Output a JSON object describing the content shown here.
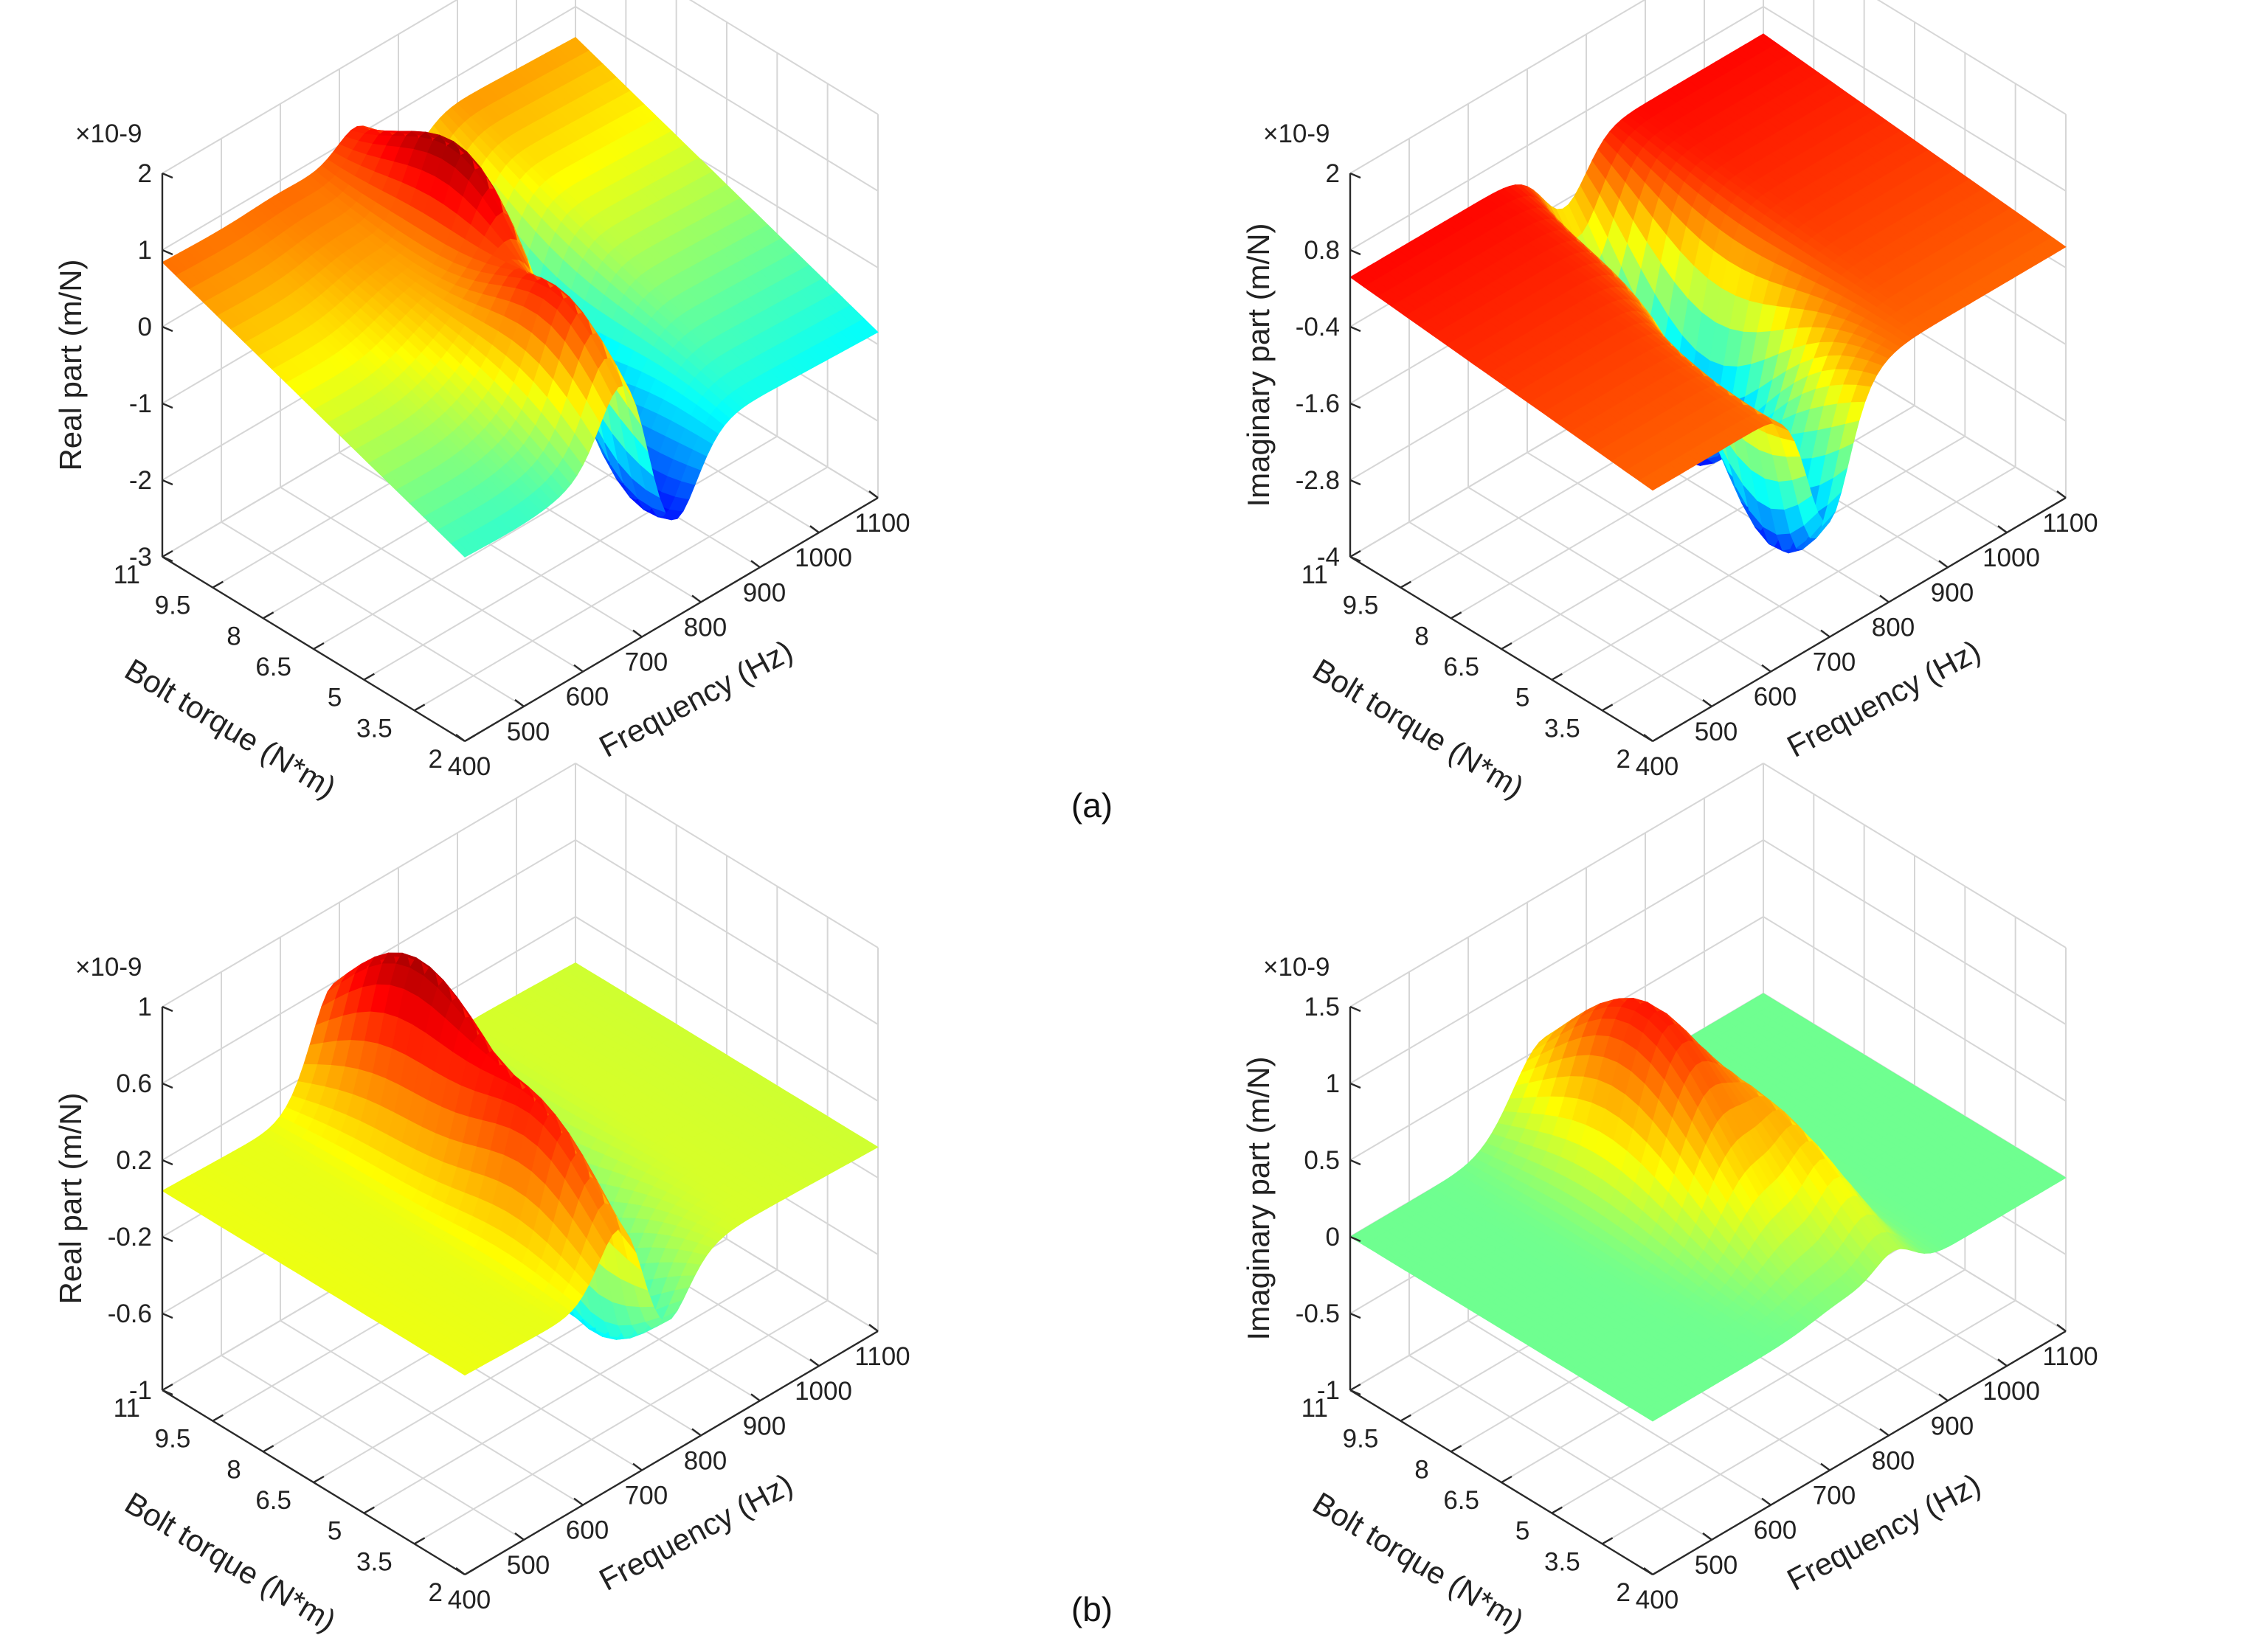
{
  "figure": {
    "panel_labels": [
      "(a)",
      "(b)"
    ]
  },
  "colors": {
    "axis": "#2a2a2a",
    "grid": "#d6d6d6",
    "colormap": "jet"
  },
  "chart_data": [
    {
      "type": "surface",
      "panel": "(a)",
      "title": "",
      "xlabel": "Frequency (Hz)",
      "ylabel": "Bolt torque (N*m)",
      "zlabel": "Real part (m/N)",
      "z_exponent": "×10-9",
      "xlim": [
        400,
        1100
      ],
      "ylim": [
        2,
        11
      ],
      "zlim": [
        -3,
        2
      ],
      "xticks": [
        "400",
        "500",
        "600",
        "700",
        "800",
        "900",
        "1000",
        "1100"
      ],
      "yticks": [
        "2",
        "3.5",
        "5",
        "6.5",
        "8",
        "9.5",
        "11"
      ],
      "zticks": [
        "-3",
        "-2",
        "-1",
        "0",
        "1",
        "2"
      ],
      "clim": [
        -2.4,
        1.8
      ],
      "surface": {
        "base": 0.0,
        "torque_slope": 0.16,
        "freq_slope": -0.12,
        "features": [
          {
            "f": 710,
            "fw": 65,
            "t": 3.4,
            "tw": 2.6,
            "amp": 1.35,
            "kind": "dispersive"
          },
          {
            "f": 770,
            "fw": 60,
            "t": 7.5,
            "tw": 3.0,
            "amp": 1.45,
            "kind": "dispersive"
          },
          {
            "f": 610,
            "fw": 80,
            "t": 6.0,
            "tw": 4.0,
            "amp": 0.35,
            "kind": "ridge"
          }
        ]
      }
    },
    {
      "type": "surface",
      "panel": "(a)",
      "title": "",
      "xlabel": "Frequency (Hz)",
      "ylabel": "Bolt torque (N*m)",
      "zlabel": "Imaginary part (m/N)",
      "z_exponent": "×10-9",
      "xlim": [
        400,
        1100
      ],
      "ylim": [
        2,
        11
      ],
      "zlim": [
        -4,
        2
      ],
      "xticks": [
        "400",
        "500",
        "600",
        "700",
        "800",
        "900",
        "1000",
        "1100"
      ],
      "yticks": [
        "2",
        "3.5",
        "5",
        "6.5",
        "8",
        "9.5",
        "11"
      ],
      "zticks": [
        "-4",
        "-2.8",
        "-1.6",
        "-0.4",
        "0.8",
        "2"
      ],
      "clim": [
        -3.8,
        1.0
      ],
      "surface": {
        "base": 0.15,
        "torque_slope": 0.05,
        "freq_slope": 0.0,
        "features": [
          {
            "f": 700,
            "fw": 50,
            "t": 3.5,
            "tw": 2.5,
            "amp": -3.3,
            "kind": "peak"
          },
          {
            "f": 760,
            "fw": 55,
            "t": 7.5,
            "tw": 3.0,
            "amp": -3.6,
            "kind": "peak"
          },
          {
            "f": 720,
            "fw": 40,
            "t": 5.5,
            "tw": 4.0,
            "amp": 0.6,
            "kind": "ridge"
          }
        ]
      }
    },
    {
      "type": "surface",
      "panel": "(b)",
      "title": "",
      "xlabel": "Frequency (Hz)",
      "ylabel": "Bolt torque (N*m)",
      "zlabel": "Real part (m/N)",
      "z_exponent": "×10-9",
      "xlim": [
        400,
        1100
      ],
      "ylim": [
        2,
        11
      ],
      "zlim": [
        -1,
        1
      ],
      "xticks": [
        "400",
        "500",
        "600",
        "700",
        "800",
        "900",
        "1000",
        "1100"
      ],
      "yticks": [
        "2",
        "3.5",
        "5",
        "6.5",
        "8",
        "9.5",
        "11"
      ],
      "zticks": [
        "-1",
        "-0.6",
        "-0.2",
        "0.2",
        "0.6",
        "1"
      ],
      "clim": [
        -1.6,
        1.1
      ],
      "surface": {
        "base": 0.0,
        "torque_slope": 0.0,
        "freq_slope": -0.04,
        "features": [
          {
            "f": 740,
            "fw": 70,
            "t": 8.5,
            "tw": 3.5,
            "amp": 0.95,
            "kind": "dispersive"
          },
          {
            "f": 700,
            "fw": 60,
            "t": 4.0,
            "tw": 2.5,
            "amp": 0.55,
            "kind": "dispersive"
          }
        ]
      }
    },
    {
      "type": "surface",
      "panel": "(b)",
      "title": "",
      "xlabel": "Frequency (Hz)",
      "ylabel": "Bolt torque (N*m)",
      "zlabel": "Imaginary part (m/N)",
      "z_exponent": "×10-9",
      "xlim": [
        400,
        1100
      ],
      "ylim": [
        2,
        11
      ],
      "zlim": [
        -1,
        1.5
      ],
      "xticks": [
        "400",
        "500",
        "600",
        "700",
        "800",
        "900",
        "1000",
        "1100"
      ],
      "yticks": [
        "2",
        "3.5",
        "5",
        "6.5",
        "8",
        "9.5",
        "11"
      ],
      "zticks": [
        "-1",
        "-0.5",
        "0",
        "0.5",
        "1",
        "1.5"
      ],
      "clim": [
        -1.5,
        1.6
      ],
      "surface": {
        "base": 0.0,
        "torque_slope": 0.0,
        "freq_slope": 0.0,
        "features": [
          {
            "f": 730,
            "fw": 75,
            "t": 8.0,
            "tw": 3.5,
            "amp": 1.15,
            "kind": "peak"
          },
          {
            "f": 810,
            "fw": 45,
            "t": 5.0,
            "tw": 3.0,
            "amp": 0.45,
            "kind": "peak"
          }
        ]
      }
    }
  ]
}
